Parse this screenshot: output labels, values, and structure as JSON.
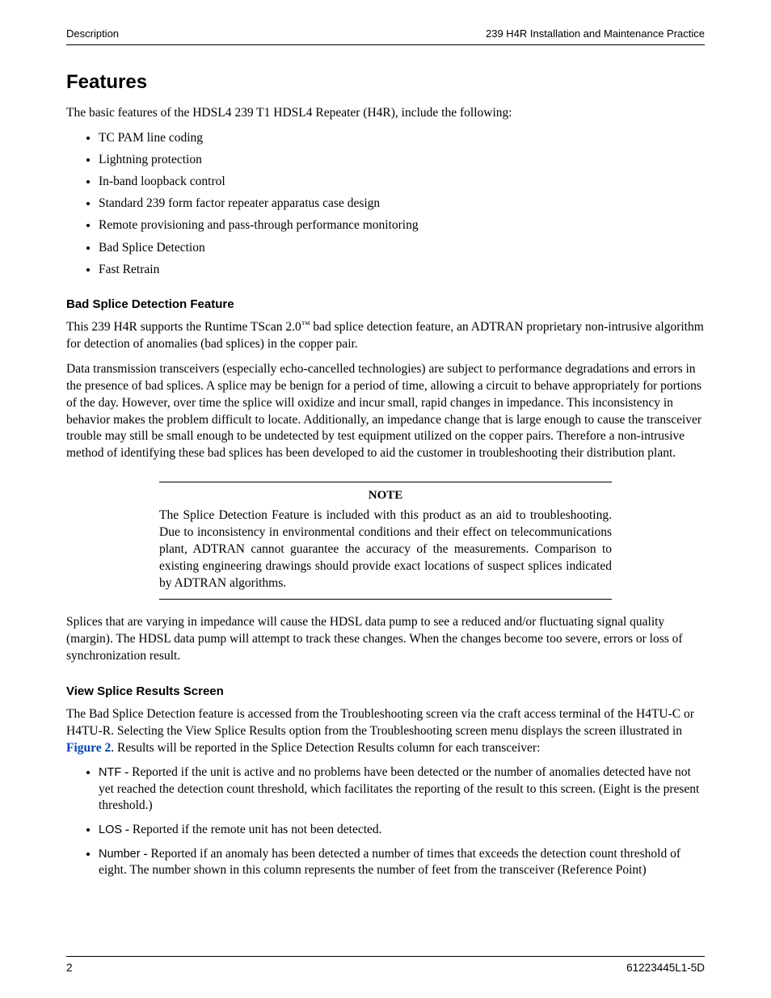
{
  "header": {
    "left": "Description",
    "right": "239 H4R Installation and Maintenance Practice"
  },
  "section": {
    "title": "Features",
    "intro": "The basic features of the HDSL4 239 T1 HDSL4 Repeater (H4R), include the following:",
    "features": [
      "TC PAM line coding",
      "Lightning protection",
      "In-band loopback control",
      "Standard 239 form factor repeater apparatus case design",
      "Remote provisioning and pass-through performance monitoring",
      "Bad Splice Detection",
      "Fast Retrain"
    ],
    "bad_splice": {
      "heading": "Bad Splice Detection Feature",
      "p1_a": "This 239 H4R supports the Runtime TScan 2.0",
      "p1_tm": "™",
      "p1_b": " bad splice detection feature, an ADTRAN proprietary non-intrusive algorithm for detection of anomalies (bad splices) in the copper pair.",
      "p2": "Data transmission transceivers (especially echo-cancelled technologies) are subject to performance degradations and errors in the presence of bad splices. A splice may be benign for a period of time, allowing a circuit to behave appropriately for portions of the day. However, over time the splice will oxidize and incur small, rapid changes in impedance. This inconsistency in behavior makes the problem difficult to locate. Additionally, an impedance change that is large enough to cause the transceiver trouble may still be small enough to be undetected by test equipment utilized on the copper pairs. Therefore a non-intrusive method of identifying these bad splices has been developed to aid the customer in troubleshooting their distribution plant.",
      "note": {
        "title": "NOTE",
        "body": "The Splice Detection Feature is included with this product as an aid to troubleshooting. Due to inconsistency in environmental conditions and their effect on telecommunications plant, ADTRAN cannot guarantee the accuracy of the measurements. Comparison to existing engineering drawings should provide exact locations of suspect splices indicated by ADTRAN algorithms."
      },
      "p3": "Splices that are varying in impedance will cause the HDSL data pump to see a reduced and/or fluctuating signal quality (margin). The HDSL data pump will attempt to track these changes. When the changes become too severe, errors or loss of synchronization result."
    },
    "view_splice": {
      "heading": "View Splice Results Screen",
      "p1_a": "The Bad Splice Detection feature is accessed from the Troubleshooting screen via the craft access terminal of the H4TU-C or H4TU-R. Selecting the View Splice Results option from the Troubleshooting screen menu displays the screen illustrated in ",
      "p1_link": "Figure 2",
      "p1_b": ". Results will be reported in the Splice Detection Results column for each transceiver:",
      "results": [
        {
          "term": "NTF",
          "desc": " - Reported if the unit is active and no problems have been detected or the number of anomalies detected have not yet reached the detection count threshold, which facilitates the reporting of the result to this screen. (Eight is the present threshold.)"
        },
        {
          "term": "LOS",
          "desc": " - Reported if the remote unit has not been detected."
        },
        {
          "term": "Number",
          "desc": " - Reported if an anomaly has been detected a number of times that exceeds the detection count threshold of eight. The number shown in this column represents the number of feet from the transceiver (Reference Point)"
        }
      ]
    }
  },
  "footer": {
    "page": "2",
    "docnum": "61223445L1-5D"
  }
}
